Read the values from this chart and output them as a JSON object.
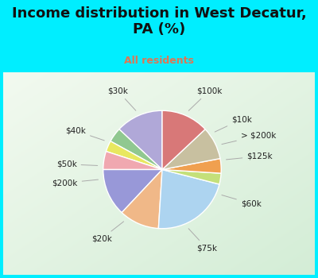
{
  "title": "Income distribution in West Decatur,\nPA (%)",
  "subtitle": "All residents",
  "title_color": "#111111",
  "subtitle_color": "#dd7755",
  "bg_color": "#00eeff",
  "chart_bg_top": "#e8f5f0",
  "chart_bg_bottom": "#c8e8d0",
  "labels": [
    "$100k",
    "$10k",
    "> $200k",
    "$125k",
    "$60k",
    "$75k",
    "$20k",
    "$200k",
    "$50k",
    "$40k",
    "$30k"
  ],
  "values": [
    13,
    4,
    3,
    5,
    13,
    11,
    22,
    3,
    4,
    9,
    13
  ],
  "colors": [
    "#b0a8d8",
    "#90c890",
    "#e8e860",
    "#f0a8b0",
    "#9898d8",
    "#f0b888",
    "#add4f0",
    "#c4e07a",
    "#f0a050",
    "#c8c0a0",
    "#d87878"
  ],
  "label_fontsize": 7.5,
  "title_fontsize": 13,
  "subtitle_fontsize": 9
}
